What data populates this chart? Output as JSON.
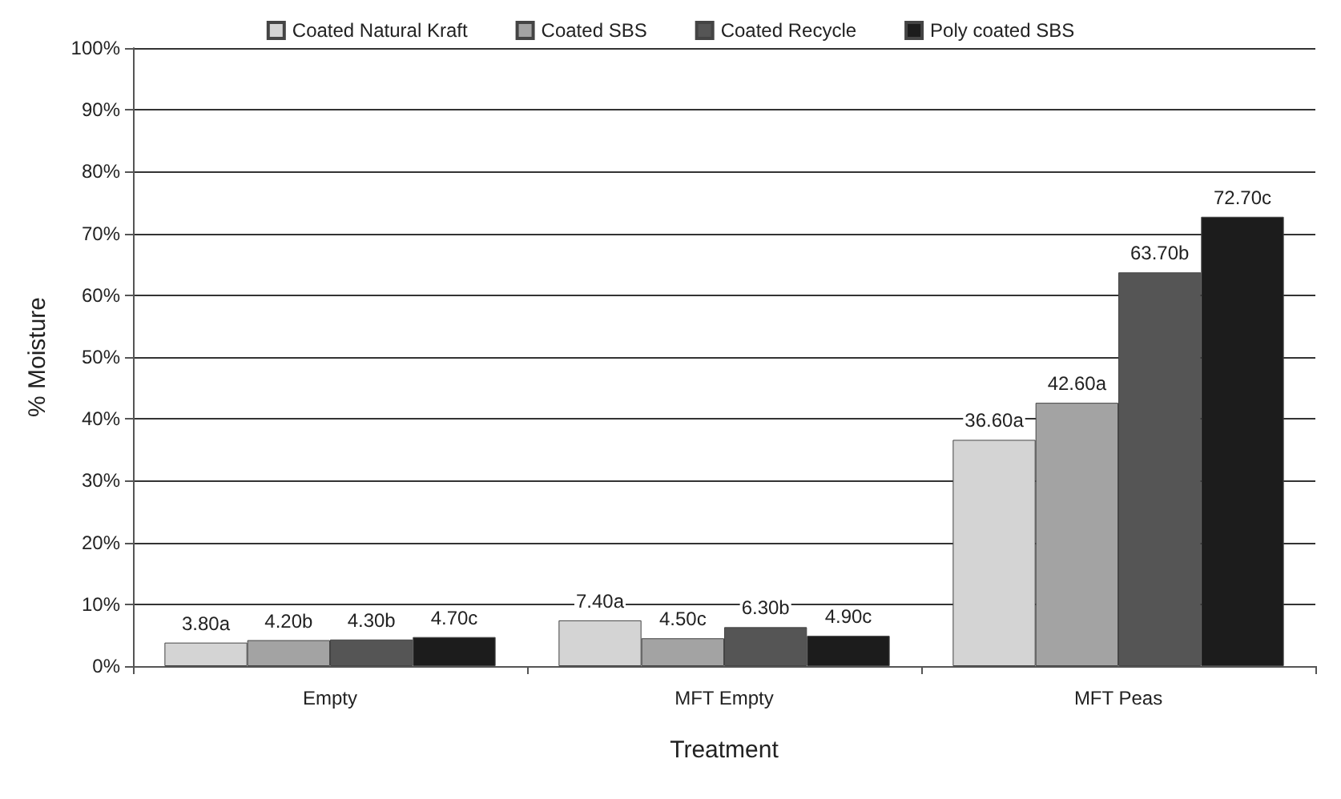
{
  "chart_data": {
    "type": "bar",
    "xlabel": "Treatment",
    "ylabel": "% Moisture",
    "categories": [
      "Empty",
      "MFT Empty",
      "MFT Peas"
    ],
    "series": [
      {
        "name": "Coated Natural Kraft",
        "color": "#d4d4d4",
        "values": [
          3.8,
          7.4,
          36.6
        ],
        "value_labels": [
          "3.80a",
          "7.40a",
          "36.60a"
        ]
      },
      {
        "name": "Coated SBS",
        "color": "#a3a3a3",
        "values": [
          4.2,
          4.5,
          42.6
        ],
        "value_labels": [
          "4.20b",
          "4.50c",
          "42.60a"
        ]
      },
      {
        "name": "Coated Recycle",
        "color": "#555555",
        "values": [
          4.3,
          6.3,
          63.7
        ],
        "value_labels": [
          "4.30b",
          "6.30b",
          "63.70b"
        ]
      },
      {
        "name": "Poly coated SBS",
        "color": "#1c1c1c",
        "values": [
          4.7,
          4.9,
          72.7
        ],
        "value_labels": [
          "4.70c",
          "4.90c",
          "72.70c"
        ]
      }
    ],
    "ylim": [
      0,
      100
    ],
    "yticks": [
      {
        "value": 0,
        "label": "0%"
      },
      {
        "value": 10,
        "label": "10%"
      },
      {
        "value": 20,
        "label": "20%"
      },
      {
        "value": 30,
        "label": "30%"
      },
      {
        "value": 40,
        "label": "40%"
      },
      {
        "value": 50,
        "label": "50%"
      },
      {
        "value": 60,
        "label": "60%"
      },
      {
        "value": 70,
        "label": "70%"
      },
      {
        "value": 80,
        "label": "80%"
      },
      {
        "value": 90,
        "label": "90%"
      },
      {
        "value": 100,
        "label": "100%"
      }
    ],
    "grid": "y",
    "legend": "top"
  }
}
